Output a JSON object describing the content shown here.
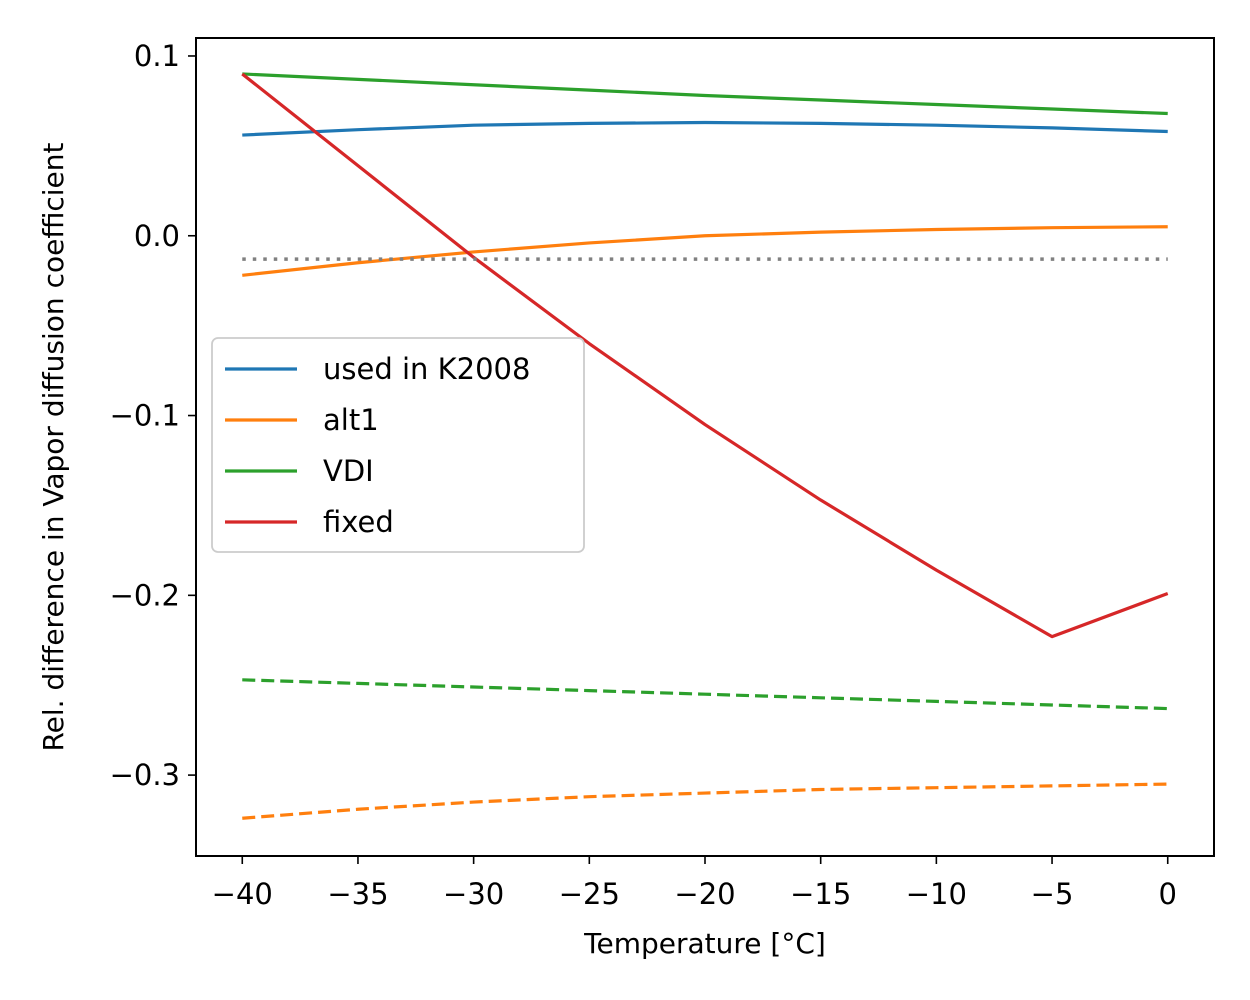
{
  "chart_data": {
    "type": "line",
    "title": "",
    "xlabel": "Temperature [°C]",
    "ylabel": "Rel. difference in Vapor diffusion coefficient",
    "xlim": [
      -42,
      2
    ],
    "ylim": [
      -0.345,
      0.11
    ],
    "xticks": [
      {
        "value": -40,
        "label": "−40"
      },
      {
        "value": -35,
        "label": "−35"
      },
      {
        "value": -30,
        "label": "−30"
      },
      {
        "value": -25,
        "label": "−25"
      },
      {
        "value": -20,
        "label": "−20"
      },
      {
        "value": -15,
        "label": "−15"
      },
      {
        "value": -10,
        "label": "−10"
      },
      {
        "value": -5,
        "label": "−5"
      },
      {
        "value": 0,
        "label": "0"
      }
    ],
    "yticks": [
      {
        "value": 0.1,
        "label": "0.1"
      },
      {
        "value": 0.0,
        "label": "0.0"
      },
      {
        "value": -0.1,
        "label": "−0.1"
      },
      {
        "value": -0.2,
        "label": "−0.2"
      },
      {
        "value": -0.3,
        "label": "−0.3"
      }
    ],
    "grid": false,
    "legend_position": "center-left",
    "x": [
      -40,
      -35,
      -30,
      -25,
      -20,
      -15,
      -10,
      -5,
      0
    ],
    "series": [
      {
        "name": "used in K2008",
        "color": "#1f77b4",
        "style": "solid",
        "values": [
          0.056,
          0.059,
          0.0615,
          0.0625,
          0.063,
          0.0625,
          0.0615,
          0.06,
          0.058
        ]
      },
      {
        "name": "alt1",
        "color": "#ff7f0e",
        "style": "solid",
        "values": [
          -0.022,
          -0.015,
          -0.009,
          -0.004,
          0.0,
          0.002,
          0.0035,
          0.0045,
          0.005
        ]
      },
      {
        "name": "VDI",
        "color": "#2ca02c",
        "style": "solid",
        "values": [
          0.09,
          0.087,
          0.084,
          0.081,
          0.078,
          0.0755,
          0.073,
          0.0705,
          0.068
        ]
      },
      {
        "name": "fixed",
        "color": "#d62728",
        "style": "solid",
        "values": [
          0.09,
          0.039,
          -0.012,
          -0.06,
          -0.105,
          -0.147,
          -0.186,
          -0.223,
          -0.199
        ]
      },
      {
        "color": "#ff7f0e",
        "style": "dashed",
        "values": [
          -0.324,
          -0.319,
          -0.315,
          -0.312,
          -0.31,
          -0.308,
          -0.307,
          -0.306,
          -0.305
        ]
      },
      {
        "color": "#2ca02c",
        "style": "dashed",
        "values": [
          -0.247,
          -0.249,
          -0.251,
          -0.253,
          -0.255,
          -0.257,
          -0.259,
          -0.261,
          -0.263
        ]
      },
      {
        "color": "#808080",
        "style": "dotted",
        "values": [
          -0.013,
          -0.013,
          -0.013,
          -0.013,
          -0.013,
          -0.013,
          -0.013,
          -0.013,
          -0.013
        ]
      }
    ],
    "legend": [
      {
        "label": "used in K2008",
        "color": "#1f77b4"
      },
      {
        "label": "alt1",
        "color": "#ff7f0e"
      },
      {
        "label": "VDI",
        "color": "#2ca02c"
      },
      {
        "label": "fixed",
        "color": "#d62728"
      }
    ]
  }
}
